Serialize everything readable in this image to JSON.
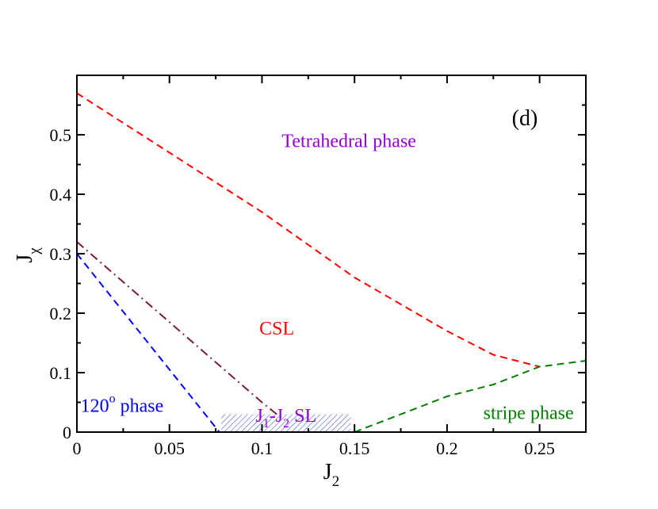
{
  "chart_data": {
    "type": "line",
    "panel_label": "(d)",
    "xlabel": {
      "main": "J",
      "sub": "2"
    },
    "ylabel": {
      "main": "J",
      "sub": "χ"
    },
    "xlim": [
      0,
      0.275
    ],
    "ylim": [
      0,
      0.6
    ],
    "x_ticks": [
      0,
      0.05,
      0.1,
      0.15,
      0.2,
      0.25
    ],
    "x_tick_labels": [
      "0",
      "0.05",
      "0.1",
      "0.15",
      "0.2",
      "0.25"
    ],
    "y_ticks": [
      0,
      0.1,
      0.2,
      0.3,
      0.4,
      0.5
    ],
    "y_tick_labels": [
      "0",
      "0.1",
      "0.2",
      "0.3",
      "0.4",
      "0.5"
    ],
    "series": [
      {
        "name": "tetrahedral-CSL boundary",
        "color": "#ff0000",
        "style": "dashed",
        "x": [
          0,
          0.05,
          0.1,
          0.15,
          0.2,
          0.225,
          0.25
        ],
        "y": [
          0.57,
          0.47,
          0.37,
          0.26,
          0.17,
          0.13,
          0.11
        ]
      },
      {
        "name": "120-degree boundary",
        "color": "#0000ff",
        "style": "dashed",
        "x": [
          0,
          0.077
        ],
        "y": [
          0.3,
          0.0
        ]
      },
      {
        "name": "CSL lower boundary",
        "color": "#7b1a3a",
        "style": "dashdot",
        "x": [
          0,
          0.1,
          0.112
        ],
        "y": [
          0.32,
          0.05,
          0.02
        ]
      },
      {
        "name": "stripe boundary",
        "color": "#008000",
        "style": "dashed",
        "x": [
          0.15,
          0.175,
          0.2,
          0.225,
          0.25,
          0.275
        ],
        "y": [
          0.0,
          0.03,
          0.06,
          0.08,
          0.11,
          0.12
        ]
      }
    ],
    "shaded_region": {
      "name": "J1-J2 SL region",
      "color": "#4a5ee0",
      "x": [
        0.078,
        0.148
      ],
      "y": [
        0.0,
        0.03
      ]
    },
    "annotations": [
      {
        "text": "Tetrahedral phase",
        "color": "#9400d3",
        "x": 0.147,
        "y": 0.49
      },
      {
        "text": "CSL",
        "color": "#ff0000",
        "x": 0.108,
        "y": 0.175
      },
      {
        "text": "stripe phase",
        "color": "#008000",
        "x": 0.244,
        "y": 0.033
      },
      {
        "text": "stripe phase",
        "color": "#008000",
        "x": 0.244,
        "y": 0.033
      }
    ],
    "phase_labels": {
      "tetrahedral": {
        "text": "Tetrahedral phase",
        "color": "#9400d3",
        "x": 0.147,
        "y": 0.49
      },
      "csl": {
        "text": "CSL",
        "color": "#ff0000",
        "x": 0.108,
        "y": 0.175
      },
      "stripe": {
        "text": "stripe phase",
        "color": "#008000",
        "x": 0.244,
        "y": 0.033
      },
      "phase120": {
        "main": "120",
        "sup": "o",
        "rest": " phase",
        "color": "#0000ff",
        "x": 0.002,
        "y": 0.045
      },
      "sl": {
        "j1": "J",
        "sub1": "1",
        "dash": "-J",
        "sub2": "2",
        "rest": " SL",
        "color": "#9400d3",
        "x": 0.113,
        "y": 0.02
      }
    }
  }
}
